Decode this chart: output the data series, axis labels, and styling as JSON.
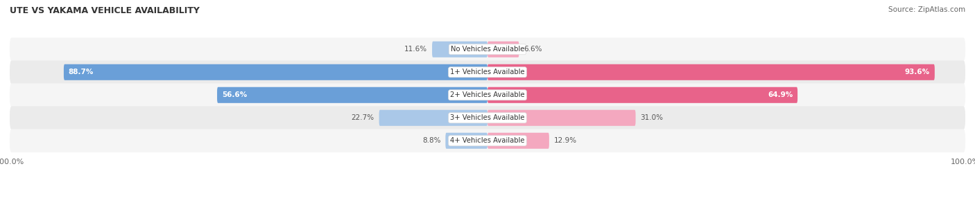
{
  "title": "UTE VS YAKAMA VEHICLE AVAILABILITY",
  "source": "Source: ZipAtlas.com",
  "categories": [
    "No Vehicles Available",
    "1+ Vehicles Available",
    "2+ Vehicles Available",
    "3+ Vehicles Available",
    "4+ Vehicles Available"
  ],
  "ute_values": [
    11.6,
    88.7,
    56.6,
    22.7,
    8.8
  ],
  "yakama_values": [
    6.6,
    93.6,
    64.9,
    31.0,
    12.9
  ],
  "ute_color_strong": "#6a9fd8",
  "ute_color_light": "#aac8e8",
  "yakama_color_strong": "#e8638a",
  "yakama_color_light": "#f4a8bf",
  "label_color_light": "#ffffff",
  "label_color_dark": "#555555",
  "bg_color": "#f0f0f0",
  "row_color_odd": "#f8f8f8",
  "row_color_even": "#efefef",
  "max_value": 100.0,
  "bar_height": 0.7,
  "figsize": [
    14.06,
    2.86
  ],
  "dpi": 100,
  "strong_threshold": 40
}
